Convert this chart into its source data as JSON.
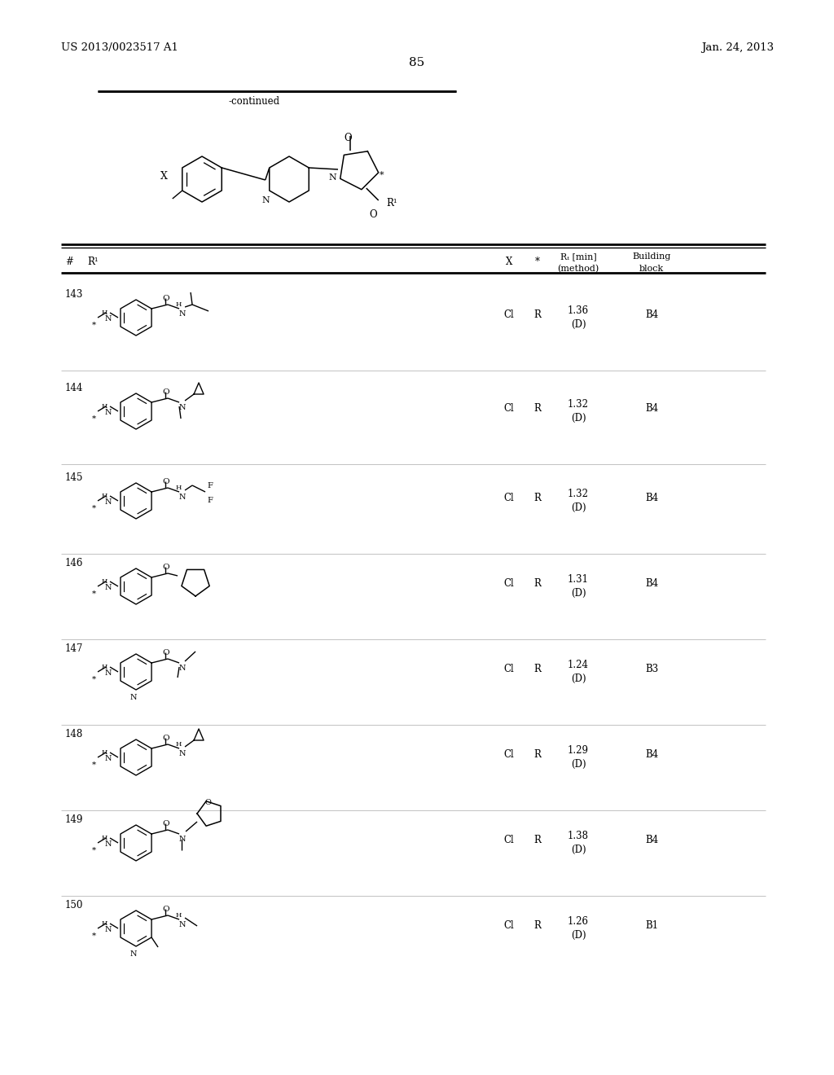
{
  "page_left": "US 2013/0023517 A1",
  "page_right": "Jan. 24, 2013",
  "page_number": "85",
  "continued_label": "-continued",
  "background_color": "#ffffff",
  "text_color": "#000000",
  "rows": [
    {
      "num": "143",
      "X": "Cl",
      "star": "R",
      "rt1": "1.36",
      "rt2": "(D)",
      "block": "B4"
    },
    {
      "num": "144",
      "X": "Cl",
      "star": "R",
      "rt1": "1.32",
      "rt2": "(D)",
      "block": "B4"
    },
    {
      "num": "145",
      "X": "Cl",
      "star": "R",
      "rt1": "1.32",
      "rt2": "(D)",
      "block": "B4"
    },
    {
      "num": "146",
      "X": "Cl",
      "star": "R",
      "rt1": "1.31",
      "rt2": "(D)",
      "block": "B4"
    },
    {
      "num": "147",
      "X": "Cl",
      "star": "R",
      "rt1": "1.24",
      "rt2": "(D)",
      "block": "B3"
    },
    {
      "num": "148",
      "X": "Cl",
      "star": "R",
      "rt1": "1.29",
      "rt2": "(D)",
      "block": "B4"
    },
    {
      "num": "149",
      "X": "Cl",
      "star": "R",
      "rt1": "1.38",
      "rt2": "(D)",
      "block": "B4"
    },
    {
      "num": "150",
      "X": "Cl",
      "star": "R",
      "rt1": "1.26",
      "rt2": "(D)",
      "block": "B1"
    }
  ]
}
